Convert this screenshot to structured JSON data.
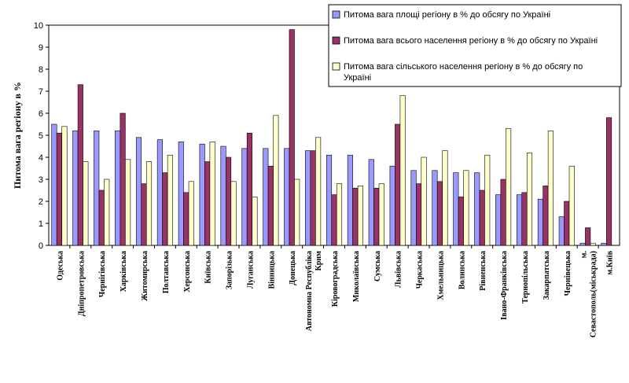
{
  "chart_data": {
    "type": "bar",
    "ylabel": "Питома вага регіону в %",
    "ylim": [
      0,
      10
    ],
    "yticks": [
      "0",
      "1",
      "2",
      "3",
      "4",
      "5",
      "6",
      "7",
      "8",
      "9",
      "10"
    ],
    "grid": false,
    "legend_position": "top-right",
    "categories": [
      "Одеська",
      "Дніпропетровська",
      "Чернігівська",
      "Харківська",
      "Житомирська",
      "Полтавська",
      "Херсонська",
      "Київська",
      "Запорізька",
      "Луганська",
      "Вінницька",
      "Донецька",
      "Автономна Республіка Крим",
      "Кіровоградська",
      "Миколаївська",
      "Сумська",
      "Львівська",
      "Черкаська",
      "Хмельницька",
      "Волинська",
      "Рівненська",
      "Івано-Франківська",
      "Тернопільська",
      "Закарпатська",
      "Чернівецька",
      "м. Севастополь(міськрада)",
      "м.Київ"
    ],
    "category_lines": [
      [
        "Одеська"
      ],
      [
        "Дніпропетровська"
      ],
      [
        "Чернігівська"
      ],
      [
        "Харківська"
      ],
      [
        "Житомирська"
      ],
      [
        "Полтавська"
      ],
      [
        "Херсонська"
      ],
      [
        "Київська"
      ],
      [
        "Запорізька"
      ],
      [
        "Луганська"
      ],
      [
        "Вінницька"
      ],
      [
        "Донецька"
      ],
      [
        "Автономна Республіка",
        "Крим"
      ],
      [
        "Кіровоградська"
      ],
      [
        "Миколаївська"
      ],
      [
        "Сумська"
      ],
      [
        "Львівська"
      ],
      [
        "Черкаська"
      ],
      [
        "Хмельницька"
      ],
      [
        "Волинська"
      ],
      [
        "Рівненська"
      ],
      [
        "Івано-Франківська"
      ],
      [
        "Тернопільська"
      ],
      [
        "Закарпатська"
      ],
      [
        "Чернівецька"
      ],
      [
        "м.",
        "Севастополь(міськрада)"
      ],
      [
        "м.Київ"
      ]
    ],
    "series": [
      {
        "name": "Питома вага площі регіону в % до обсягу по Україні",
        "color": "#9999ff",
        "values": [
          5.5,
          5.2,
          5.2,
          5.2,
          4.9,
          4.8,
          4.7,
          4.6,
          4.5,
          4.4,
          4.4,
          4.4,
          4.3,
          4.1,
          4.1,
          3.9,
          3.6,
          3.4,
          3.4,
          3.3,
          3.3,
          2.3,
          2.3,
          2.1,
          1.3,
          0.1,
          0.1
        ]
      },
      {
        "name": "Питома вага всього населення регіону  в % до обсягу по Україні",
        "color": "#993366",
        "values": [
          5.1,
          7.3,
          2.5,
          6.0,
          2.8,
          3.3,
          2.4,
          3.8,
          4.0,
          5.1,
          3.6,
          9.8,
          4.3,
          2.3,
          2.6,
          2.6,
          5.5,
          2.8,
          2.9,
          2.2,
          2.5,
          3.0,
          2.4,
          2.7,
          2.0,
          0.8,
          5.8
        ]
      },
      {
        "name": "Питома вага сільського населення регіону в % до обсягу по Україні",
        "color": "#ffffcc",
        "values": [
          5.4,
          3.8,
          3.0,
          3.9,
          3.8,
          4.1,
          2.9,
          4.7,
          2.9,
          2.2,
          5.9,
          3.0,
          4.9,
          2.8,
          2.7,
          2.8,
          6.8,
          4.0,
          4.3,
          3.4,
          4.1,
          5.3,
          4.2,
          5.2,
          3.6,
          0.1,
          0
        ]
      }
    ]
  }
}
